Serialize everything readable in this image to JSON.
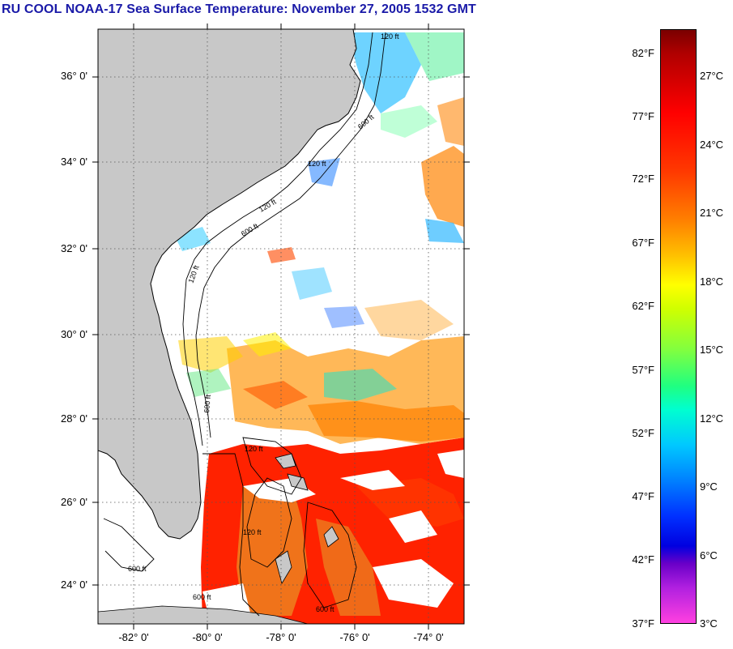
{
  "title": "RU COOL  NOAA-17  Sea Surface Temperature:  November 27, 2005 1532 GMT",
  "map": {
    "lat_labels": [
      "36° 0'",
      "34° 0'",
      "32° 0'",
      "30° 0'",
      "28° 0'",
      "26° 0'",
      "24° 0'"
    ],
    "lon_labels": [
      "-82° 0'",
      "-80° 0'",
      "-78° 0'",
      "-76° 0'",
      "-74° 0'"
    ],
    "contour_labels": [
      "120 ft",
      "600 ft",
      "120 ft",
      "600 ft",
      "120 ft",
      "600 ft",
      "120 ft",
      "600 ft",
      "120 ft",
      "600 ft",
      "120 ft",
      "600 ft"
    ],
    "colors": {
      "land": "#c8c8c8",
      "cloud": "#ffffff",
      "grid": "#555555"
    }
  },
  "colorbar": {
    "fahrenheit_labels": [
      "82°F",
      "77°F",
      "72°F",
      "67°F",
      "62°F",
      "57°F",
      "52°F",
      "47°F",
      "42°F",
      "37°F"
    ],
    "celsius_labels": [
      "27°C",
      "24°C",
      "21°C",
      "18°C",
      "15°C",
      "12°C",
      "9°C",
      "6°C",
      "3°C"
    ]
  }
}
